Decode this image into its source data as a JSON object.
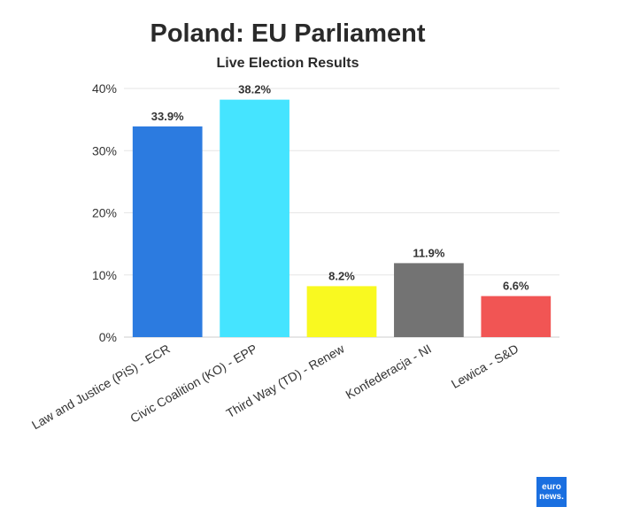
{
  "chart_data": {
    "type": "bar",
    "title": "Poland: EU Parliament",
    "subtitle": "Live Election Results",
    "categories": [
      "Law and Justice (PiS) - ECR",
      "Civic Coalition (KO) - EPP",
      "Third Way (TD) - Renew",
      "Konfederacja - NI",
      "Lewica - S&D"
    ],
    "values": [
      33.9,
      38.2,
      8.2,
      11.9,
      6.6
    ],
    "data_labels": [
      "33.9%",
      "38.2%",
      "8.2%",
      "11.9%",
      "6.6%"
    ],
    "colors": [
      "#2c7be0",
      "#45e4ff",
      "#f9f920",
      "#737373",
      "#f15554"
    ],
    "ylim": [
      0,
      40
    ],
    "yticks": [
      0,
      10,
      20,
      30,
      40
    ],
    "ytick_labels": [
      "0%",
      "10%",
      "20%",
      "30%",
      "40%"
    ],
    "xlabel": "",
    "ylabel": "",
    "grid": true,
    "legend": "none"
  },
  "brand": {
    "line1": "euro",
    "line2": "news.",
    "color": "#1a6fe0"
  }
}
